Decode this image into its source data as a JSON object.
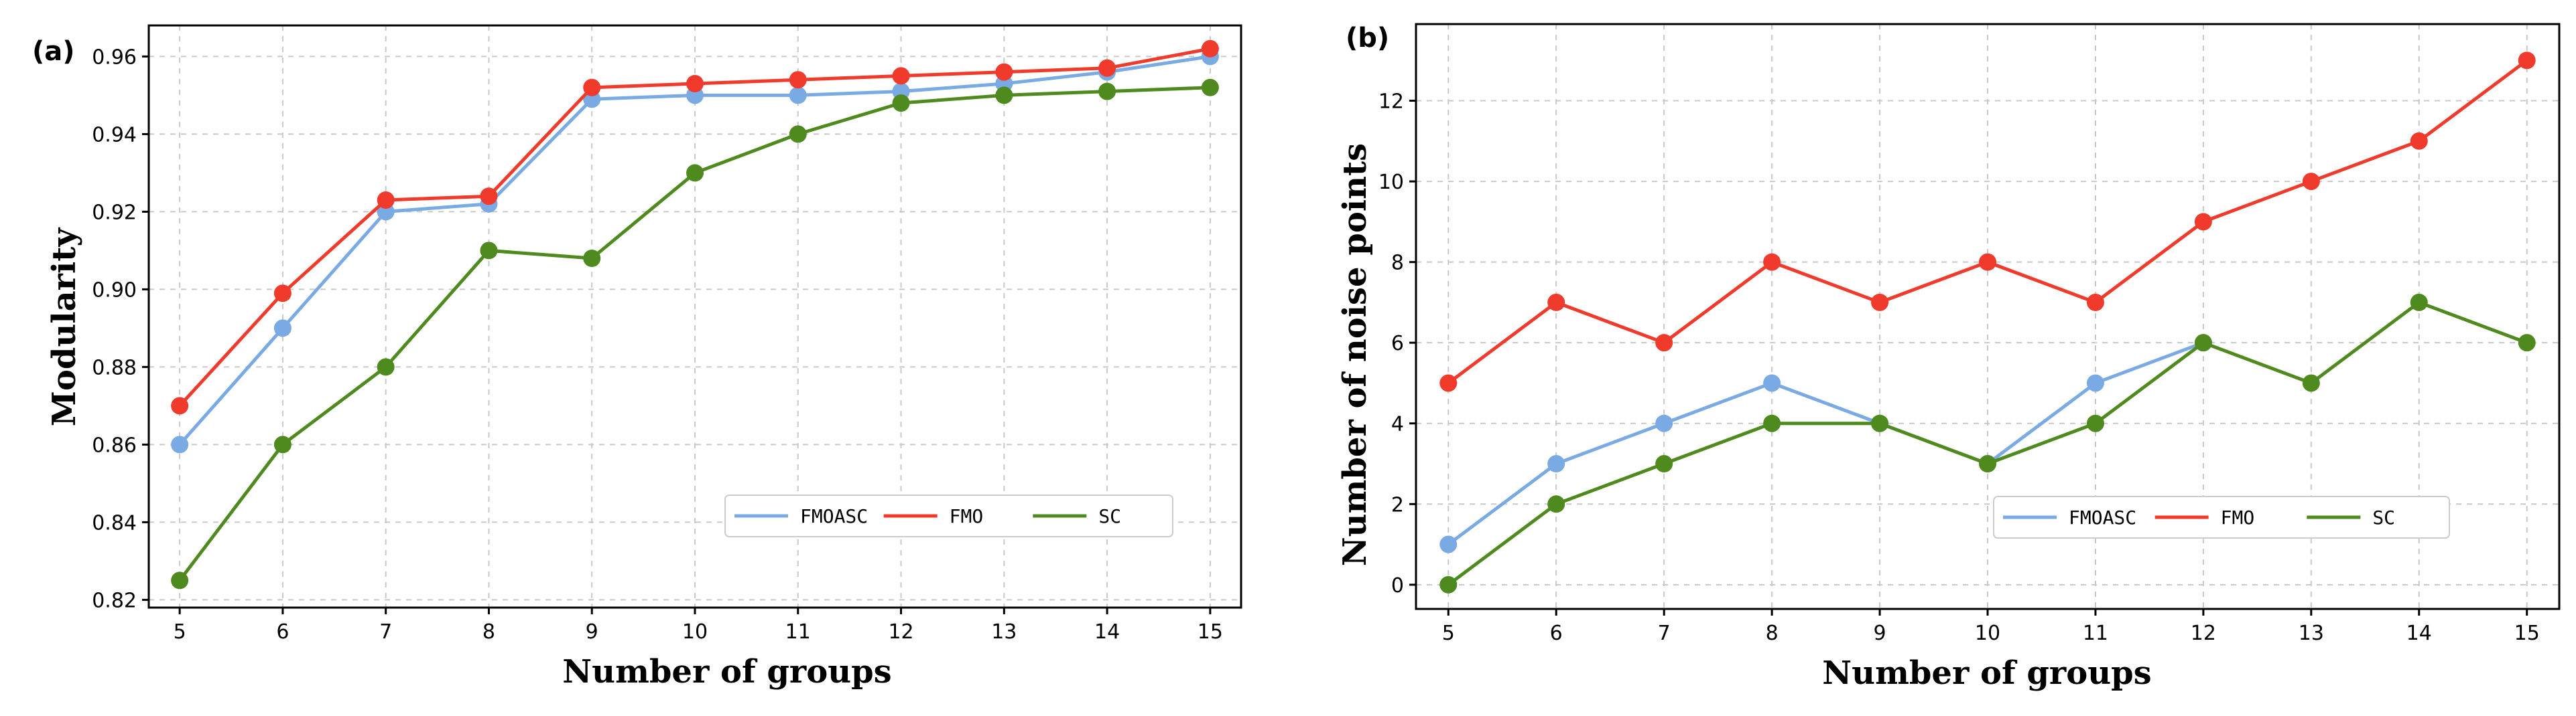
{
  "chart_data": [
    {
      "type": "line",
      "panel_label": "(a)",
      "title": "",
      "xlabel": "Number of groups",
      "ylabel": "Modularity",
      "x": [
        5,
        6,
        7,
        8,
        9,
        10,
        11,
        12,
        13,
        14,
        15
      ],
      "xlim": [
        4.7,
        15.3
      ],
      "ylim": [
        0.818,
        0.968
      ],
      "yticks": [
        0.82,
        0.84,
        0.86,
        0.88,
        0.9,
        0.92,
        0.94,
        0.96
      ],
      "ytick_labels": [
        "0.82",
        "0.84",
        "0.86",
        "0.88",
        "0.90",
        "0.92",
        "0.94",
        "0.96"
      ],
      "grid": true,
      "legend": "lower-right",
      "series": [
        {
          "name": "FMOASC",
          "color": "#7aaae4",
          "values": [
            0.86,
            0.89,
            0.92,
            0.922,
            0.949,
            0.95,
            0.95,
            0.951,
            0.953,
            0.956,
            0.96
          ]
        },
        {
          "name": "FMO",
          "color": "#f03a2c",
          "values": [
            0.87,
            0.899,
            0.923,
            0.924,
            0.952,
            0.953,
            0.954,
            0.955,
            0.956,
            0.957,
            0.962
          ]
        },
        {
          "name": "SC",
          "color": "#4f8a1f",
          "values": [
            0.825,
            0.86,
            0.88,
            0.91,
            0.908,
            0.93,
            0.94,
            0.948,
            0.95,
            0.951,
            0.952
          ]
        }
      ]
    },
    {
      "type": "line",
      "panel_label": "(b)",
      "title": "",
      "xlabel": "Number of groups",
      "ylabel": "Number of noise points",
      "x": [
        5,
        6,
        7,
        8,
        9,
        10,
        11,
        12,
        13,
        14,
        15
      ],
      "xlim": [
        4.7,
        15.3
      ],
      "ylim": [
        -0.6,
        13.9
      ],
      "yticks": [
        0,
        2,
        4,
        6,
        8,
        10,
        12
      ],
      "ytick_labels": [
        "0",
        "2",
        "4",
        "6",
        "8",
        "10",
        "12"
      ],
      "grid": true,
      "legend": "lower-right",
      "series": [
        {
          "name": "FMOASC",
          "color": "#7aaae4",
          "values": [
            1,
            3,
            4,
            5,
            4,
            3,
            5,
            6,
            null,
            null,
            null
          ]
        },
        {
          "name": "FMO",
          "color": "#f03a2c",
          "values": [
            5,
            7,
            6,
            8,
            7,
            8,
            7,
            9,
            10,
            11,
            13
          ]
        },
        {
          "name": "SC",
          "color": "#4f8a1f",
          "values": [
            0,
            2,
            3,
            4,
            4,
            3,
            4,
            6,
            5,
            7,
            6
          ]
        }
      ]
    }
  ]
}
